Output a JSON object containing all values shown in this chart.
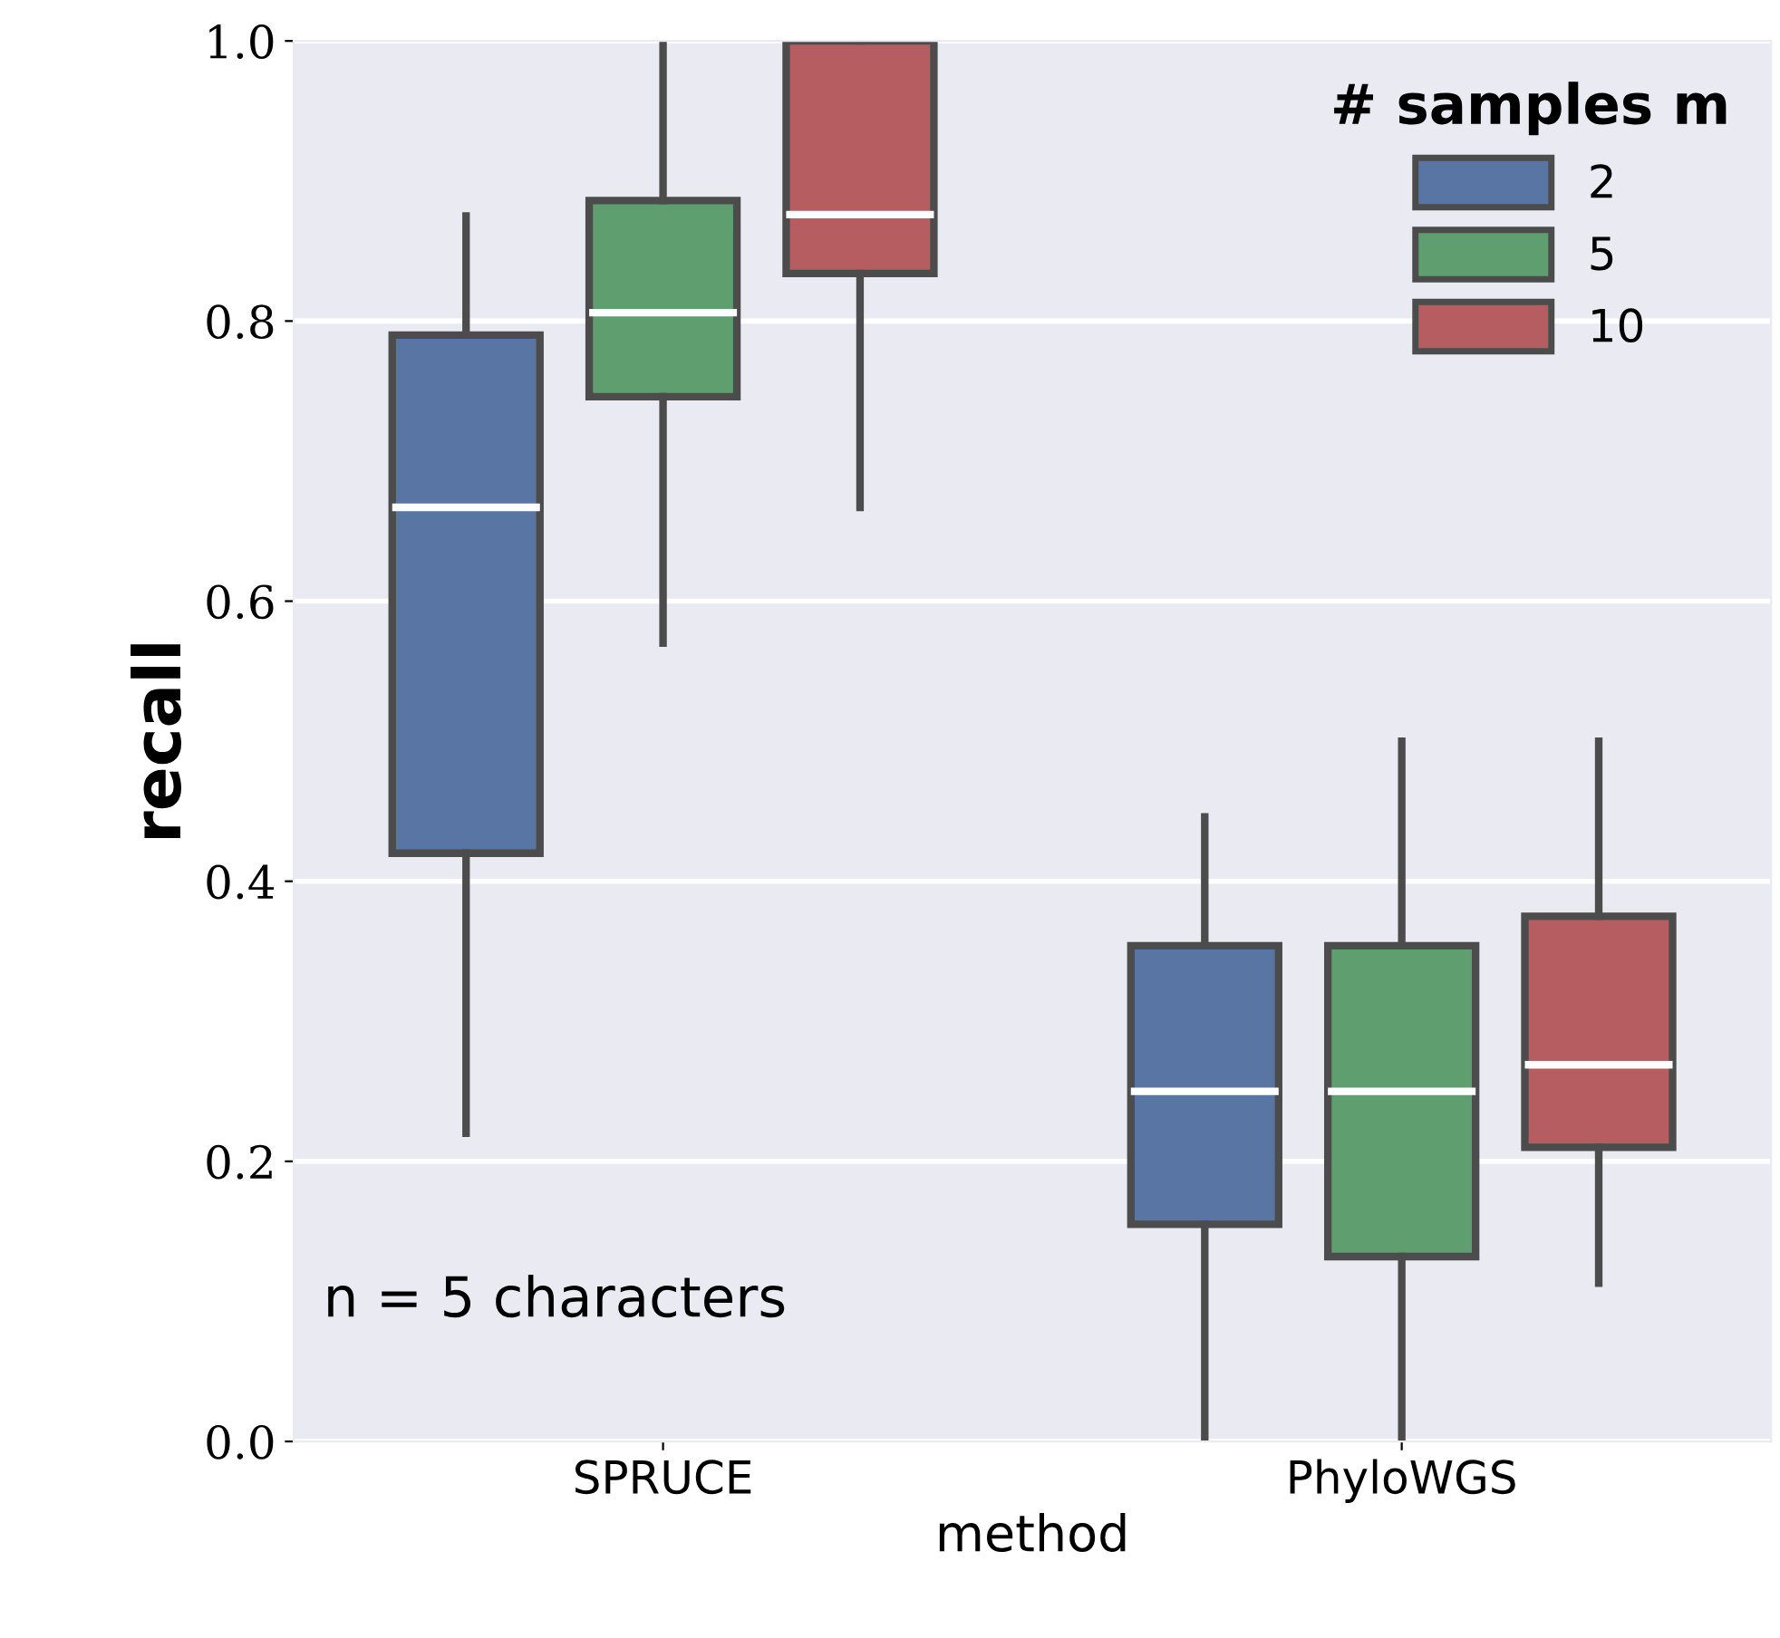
{
  "chart_data": {
    "type": "box",
    "xlabel": "method",
    "ylabel": "recall",
    "legend_title": "# samples m",
    "categories": [
      "SPRUCE",
      "PhyloWGS"
    ],
    "series": [
      {
        "name": "2",
        "color": "#5975a4",
        "boxes": [
          {
            "low": 0.22,
            "q1": 0.42,
            "median": 0.667,
            "q3": 0.79,
            "high": 0.875
          },
          {
            "low": 0.0,
            "q1": 0.155,
            "median": 0.25,
            "q3": 0.354,
            "high": 0.446
          }
        ]
      },
      {
        "name": "5",
        "color": "#5f9e6e",
        "boxes": [
          {
            "low": 0.57,
            "q1": 0.746,
            "median": 0.806,
            "q3": 0.886,
            "high": 1.0
          },
          {
            "low": 0.0,
            "q1": 0.132,
            "median": 0.25,
            "q3": 0.354,
            "high": 0.5
          }
        ]
      },
      {
        "name": "10",
        "color": "#b55d60",
        "boxes": [
          {
            "low": 0.667,
            "q1": 0.834,
            "median": 0.876,
            "q3": 1.0,
            "high": 1.0
          },
          {
            "low": 0.113,
            "q1": 0.21,
            "median": 0.269,
            "q3": 0.375,
            "high": 0.5
          }
        ]
      }
    ],
    "ylim": [
      0,
      1
    ],
    "yticks": [
      {
        "value": 0,
        "label": "0.0"
      },
      {
        "value": 0.2,
        "label": "0.2"
      },
      {
        "value": 0.4,
        "label": "0.4"
      },
      {
        "value": 0.6,
        "label": "0.6"
      },
      {
        "value": 0.8,
        "label": "0.8"
      },
      {
        "value": 1,
        "label": "1.0"
      }
    ],
    "grid": "y",
    "legend": "top right",
    "annotations": [
      "n = 5 characters"
    ]
  }
}
